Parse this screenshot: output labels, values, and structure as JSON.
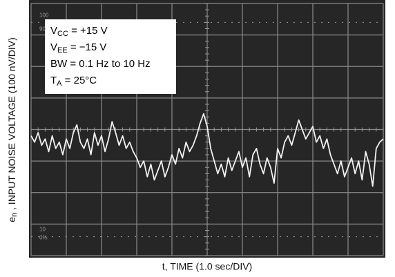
{
  "chart_data": {
    "type": "line",
    "x_label": "t, TIME (1.0 sec/DIV)",
    "y_label": {
      "main": "e",
      "sub": "n",
      "rest": " , INPUT NOISE VOLTAGE (100 nV/DIV)"
    },
    "annotations": [
      {
        "main": "V",
        "sub": "CC",
        "rest": " = +15 V"
      },
      {
        "main": "V",
        "sub": "EE",
        "rest": " = −15 V"
      },
      {
        "main": "BW = 0.1 Hz to 10 Hz",
        "sub": "",
        "rest": ""
      },
      {
        "main": "T",
        "sub": "A",
        "rest": " = 25°C"
      }
    ],
    "graticule_labels": [
      "100",
      "90",
      "10",
      "0%"
    ],
    "xlim": [
      0,
      10
    ],
    "ylim": [
      -400,
      400
    ],
    "color": "#f2f2f2",
    "x": [
      0,
      0.1,
      0.2,
      0.3,
      0.4,
      0.5,
      0.6,
      0.7,
      0.8,
      0.9,
      1,
      1.1,
      1.2,
      1.3,
      1.4,
      1.5,
      1.6,
      1.7,
      1.8,
      1.9,
      2,
      2.1,
      2.2,
      2.3,
      2.4,
      2.5,
      2.6,
      2.7,
      2.8,
      2.9,
      3,
      3.1,
      3.2,
      3.3,
      3.4,
      3.5,
      3.6,
      3.7,
      3.8,
      3.9,
      4,
      4.1,
      4.2,
      4.3,
      4.4,
      4.5,
      4.6,
      4.7,
      4.8,
      4.9,
      5,
      5.1,
      5.2,
      5.3,
      5.4,
      5.5,
      5.6,
      5.7,
      5.8,
      5.9,
      6,
      6.1,
      6.2,
      6.3,
      6.4,
      6.5,
      6.6,
      6.7,
      6.8,
      6.9,
      7,
      7.1,
      7.2,
      7.3,
      7.4,
      7.5,
      7.6,
      7.7,
      7.8,
      7.9,
      8,
      8.1,
      8.2,
      8.3,
      8.4,
      8.5,
      8.6,
      8.7,
      8.8,
      8.9,
      9,
      9.1,
      9.2,
      9.3,
      9.4,
      9.5,
      9.6,
      9.7,
      9.8,
      9.9,
      10
    ],
    "values": [
      -20,
      -40,
      -10,
      -50,
      -30,
      -70,
      -20,
      -60,
      -40,
      -80,
      -30,
      -60,
      -10,
      15,
      -40,
      -60,
      -30,
      -80,
      -10,
      -50,
      -20,
      -70,
      -30,
      25,
      -10,
      -50,
      -20,
      -60,
      -40,
      -70,
      -90,
      -120,
      -100,
      -150,
      -110,
      -160,
      -130,
      -100,
      -150,
      -120,
      -80,
      -110,
      -60,
      -90,
      -40,
      -70,
      -50,
      -20,
      20,
      50,
      10,
      -60,
      -100,
      -140,
      -110,
      -150,
      -90,
      -130,
      -100,
      -70,
      -120,
      -90,
      -150,
      -80,
      -60,
      -110,
      -140,
      -90,
      -120,
      -170,
      -60,
      -90,
      -40,
      -20,
      -50,
      -10,
      30,
      0,
      -30,
      -10,
      10,
      -40,
      -20,
      -60,
      -30,
      -80,
      -110,
      -140,
      -100,
      -150,
      -120,
      -90,
      -140,
      -100,
      -160,
      -70,
      -110,
      -180,
      -60,
      -40,
      -30
    ]
  }
}
